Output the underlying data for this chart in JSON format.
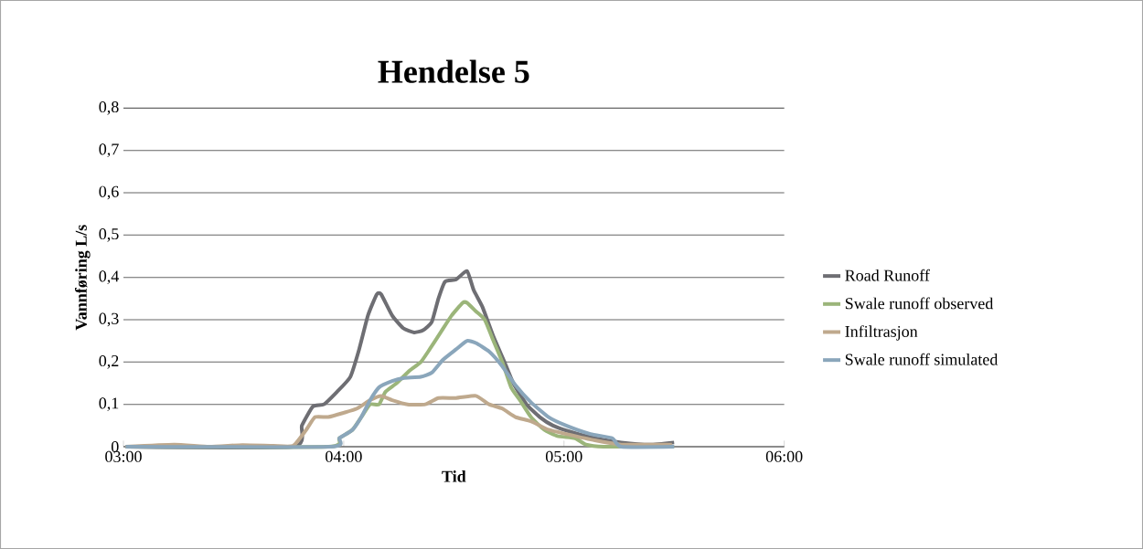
{
  "chart_data": {
    "type": "line",
    "title": "Hendelse 5",
    "xlabel": "Tid",
    "ylabel": "Vannføring L/s",
    "xlim": [
      3,
      6
    ],
    "xticks": [
      {
        "value": 3,
        "label": "03:00"
      },
      {
        "value": 4,
        "label": "04:00"
      },
      {
        "value": 5,
        "label": "05:00"
      },
      {
        "value": 6,
        "label": "06:00"
      }
    ],
    "ylim": [
      0,
      0.8
    ],
    "yticks": [
      0,
      {
        "value": 0.1,
        "label": "0,1"
      },
      {
        "value": 0.2,
        "label": "0,2"
      },
      {
        "value": 0.3,
        "label": "0,3"
      },
      {
        "value": 0.4,
        "label": "0,4"
      },
      {
        "value": 0.5,
        "label": "0,5"
      },
      {
        "value": 0.6,
        "label": "0,6"
      },
      {
        "value": 0.7,
        "label": "0,7"
      },
      {
        "value": 0.8,
        "label": "0,8"
      }
    ],
    "grid": "y",
    "legend": "right",
    "marker": "none",
    "line_style": "solid",
    "series": [
      {
        "name": "Road Runoff",
        "color": "#6e6e73",
        "x": [
          3.01,
          3.77,
          3.81,
          3.86,
          3.91,
          3.97,
          4.03,
          4.07,
          4.11,
          4.15,
          4.17,
          4.22,
          4.27,
          4.32,
          4.36,
          4.4,
          4.43,
          4.46,
          4.51,
          4.56,
          4.59,
          4.63,
          4.68,
          4.73,
          4.77,
          4.83,
          4.89,
          4.95,
          5.03,
          5.14,
          5.26,
          5.39,
          5.5
        ],
        "values": [
          0,
          0,
          0.05,
          0.095,
          0.1,
          0.13,
          0.165,
          0.23,
          0.31,
          0.36,
          0.36,
          0.31,
          0.28,
          0.27,
          0.275,
          0.295,
          0.35,
          0.39,
          0.395,
          0.415,
          0.37,
          0.33,
          0.26,
          0.2,
          0.15,
          0.1,
          0.07,
          0.05,
          0.035,
          0.02,
          0.01,
          0.005,
          0.01
        ]
      },
      {
        "name": "Swale runoff observed",
        "color": "#9bb57a",
        "x": [
          3.01,
          3.93,
          3.98,
          4.04,
          4.08,
          4.12,
          4.16,
          4.19,
          4.24,
          4.3,
          4.35,
          4.39,
          4.44,
          4.49,
          4.54,
          4.56,
          4.6,
          4.64,
          4.68,
          4.72,
          4.76,
          4.8,
          4.85,
          4.91,
          4.97,
          5.05,
          5.1,
          5.18,
          5.5
        ],
        "values": [
          0,
          0,
          0.02,
          0.04,
          0.07,
          0.1,
          0.1,
          0.13,
          0.15,
          0.18,
          0.2,
          0.23,
          0.27,
          0.31,
          0.34,
          0.34,
          0.32,
          0.3,
          0.25,
          0.2,
          0.14,
          0.11,
          0.07,
          0.04,
          0.025,
          0.02,
          0.005,
          0,
          0
        ]
      },
      {
        "name": "Infiltrasjon",
        "color": "#bfa98d",
        "x": [
          3.01,
          3.23,
          3.39,
          3.54,
          3.68,
          3.77,
          3.83,
          3.87,
          3.93,
          4.0,
          4.06,
          4.12,
          4.17,
          4.22,
          4.29,
          4.37,
          4.43,
          4.51,
          4.6,
          4.66,
          4.72,
          4.78,
          4.85,
          4.93,
          5.01,
          5.14,
          5.26,
          5.34,
          5.49
        ],
        "values": [
          0,
          0.005,
          0,
          0.004,
          0.002,
          0.002,
          0.04,
          0.07,
          0.07,
          0.08,
          0.09,
          0.11,
          0.12,
          0.11,
          0.1,
          0.1,
          0.115,
          0.115,
          0.12,
          0.1,
          0.09,
          0.07,
          0.06,
          0.04,
          0.03,
          0.015,
          0.005,
          0.005,
          0.005
        ]
      },
      {
        "name": "Swale runoff simulated",
        "color": "#8aa6bb",
        "x": [
          3.01,
          3.94,
          3.98,
          4.04,
          4.08,
          4.12,
          4.16,
          4.22,
          4.27,
          4.35,
          4.4,
          4.45,
          4.51,
          4.56,
          4.6,
          4.66,
          4.72,
          4.78,
          4.85,
          4.93,
          5.01,
          5.12,
          5.22,
          5.26,
          5.5
        ],
        "values": [
          0,
          0,
          0.02,
          0.04,
          0.07,
          0.11,
          0.14,
          0.155,
          0.162,
          0.165,
          0.175,
          0.205,
          0.23,
          0.25,
          0.245,
          0.225,
          0.19,
          0.145,
          0.105,
          0.07,
          0.05,
          0.03,
          0.02,
          0,
          0
        ]
      }
    ]
  }
}
